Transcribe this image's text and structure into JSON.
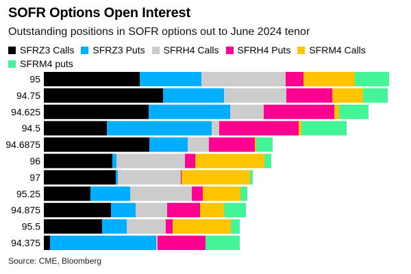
{
  "chart_data": {
    "type": "bar",
    "orientation": "horizontal",
    "stacked": true,
    "title": "SOFR Options Open Interest",
    "subtitle": "Outstanding positions in SOFR options out to June 2024 tenor",
    "xlabel": "",
    "ylabel": "",
    "units_note": "relative open interest (no axis scale shown)",
    "grid": false,
    "legend_position": "top",
    "categories": [
      "95",
      "94.75",
      "94.625",
      "94.5",
      "94.6875",
      "96",
      "97",
      "95.25",
      "94.875",
      "95.5",
      "94.375"
    ],
    "series": [
      {
        "name": "SFRZ3 Calls",
        "color": "#000000",
        "values": [
          140,
          174,
          153,
          92,
          154,
          100,
          105,
          68,
          98,
          85,
          9
        ]
      },
      {
        "name": "SFRZ3 Puts",
        "color": "#00AEFF",
        "values": [
          90,
          89,
          119,
          153,
          56,
          6,
          3,
          58,
          36,
          36,
          155
        ]
      },
      {
        "name": "SFRH4 Calls",
        "color": "#CCCCCC",
        "values": [
          123,
          91,
          49,
          11,
          31,
          100,
          92,
          90,
          46,
          57,
          2
        ]
      },
      {
        "name": "SFRH4 Puts",
        "color": "#FF0090",
        "values": [
          26,
          67,
          103,
          116,
          67,
          15,
          1,
          16,
          48,
          10,
          70
        ]
      },
      {
        "name": "SFRM4 Calls",
        "color": "#FFC400",
        "values": [
          75,
          45,
          7,
          4,
          2,
          101,
          100,
          55,
          35,
          85,
          0
        ]
      },
      {
        "name": "SFRM4 puts",
        "color": "#44F598",
        "values": [
          50,
          36,
          43,
          66,
          24,
          10,
          4,
          10,
          32,
          13,
          50
        ]
      }
    ],
    "source": "Source: CME, Bloomberg"
  }
}
